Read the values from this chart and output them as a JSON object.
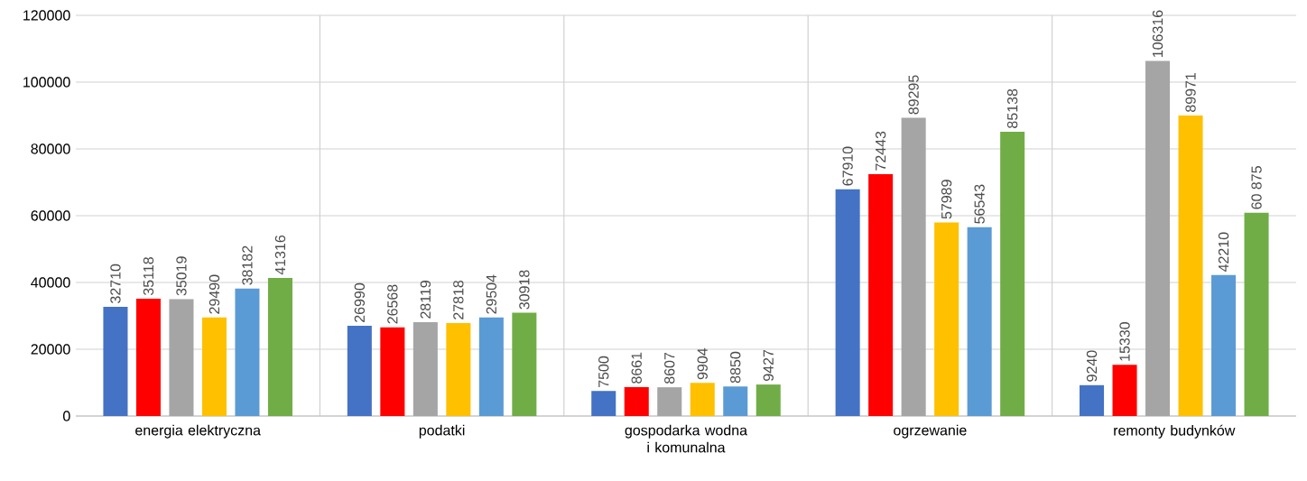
{
  "chart_data": {
    "type": "bar",
    "categories": [
      "energia elektryczna",
      "podatki",
      "gospodarka wodna i komunalna",
      "ogrzewanie",
      "remonty budynków"
    ],
    "series": [
      {
        "color": "#4472c4",
        "values": [
          32710,
          26990,
          7500,
          67910,
          9240
        ],
        "value_labels": [
          "32710",
          "26990",
          "7500",
          "67910",
          "9240"
        ]
      },
      {
        "color": "#ff0000",
        "values": [
          35118,
          26568,
          8661,
          72443,
          15330
        ],
        "value_labels": [
          "35118",
          "26568",
          "8661",
          "72443",
          "15330"
        ]
      },
      {
        "color": "#a5a5a5",
        "values": [
          35019,
          28119,
          8607,
          89295,
          106316
        ],
        "value_labels": [
          "35019",
          "28119",
          "8607",
          "89295",
          "106316"
        ]
      },
      {
        "color": "#ffc000",
        "values": [
          29490,
          27818,
          9904,
          57989,
          89971
        ],
        "value_labels": [
          "29490",
          "27818",
          "9904",
          "57989",
          "89971"
        ]
      },
      {
        "color": "#5b9bd5",
        "values": [
          38182,
          29504,
          8850,
          56543,
          42210
        ],
        "value_labels": [
          "38182",
          "29504",
          "8850",
          "56543",
          "42210"
        ]
      },
      {
        "color": "#70ad47",
        "values": [
          41316,
          30918,
          9427,
          85138,
          60875
        ],
        "value_labels": [
          "41316",
          "30918",
          "9427",
          "85138",
          "60 875"
        ]
      }
    ],
    "ylim": [
      0,
      120000
    ],
    "yticks": [
      0,
      20000,
      40000,
      60000,
      80000,
      100000,
      120000
    ],
    "grid": true
  }
}
